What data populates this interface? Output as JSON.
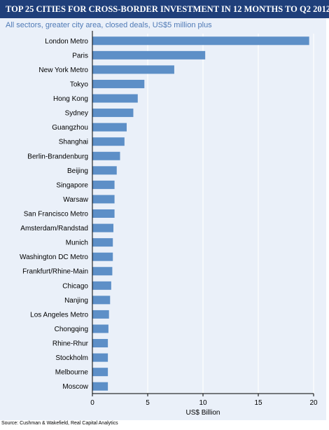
{
  "header": {
    "title": "TOP 25 CITIES FOR CROSS-BORDER INVESTMENT IN 12 MONTHS TO Q2 2012",
    "subtitle": "All sectors, greater city area, closed deals, US$5 million plus"
  },
  "footer": {
    "source": "Source: Cushman & Wakefield, Real Capital Analytics"
  },
  "colors": {
    "bar": "#5d8fc7",
    "title_bg": "#1f3f7a",
    "panel_bg": "#eaf0f9",
    "subtitle": "#4f7ab6"
  },
  "chart_data": {
    "type": "bar",
    "orientation": "horizontal",
    "title": "TOP 25 CITIES FOR CROSS-BORDER INVESTMENT IN 12 MONTHS TO Q2 2012",
    "subtitle": "All sectors, greater city area, closed deals, US$5 million plus",
    "xlabel": "US$ Billion",
    "ylabel": "",
    "xlim": [
      0,
      20
    ],
    "xticks": [
      0,
      5,
      10,
      15,
      20
    ],
    "grid": true,
    "categories": [
      "London Metro",
      "Paris",
      "New York Metro",
      "Tokyo",
      "Hong Kong",
      "Sydney",
      "Guangzhou",
      "Shanghai",
      "Berlin-Brandenburg",
      "Beijing",
      "Singapore",
      "Warsaw",
      "San Francisco Metro",
      "Amsterdam/Randstad",
      "Munich",
      "Washington DC Metro",
      "Frankfurt/Rhine-Main",
      "Chicago",
      "Nanjing",
      "Los Angeles Metro",
      "Chongqing",
      "Rhine-Rhur",
      "Stockholm",
      "Melbourne",
      "Moscow"
    ],
    "values": [
      19.6,
      10.2,
      7.4,
      4.7,
      4.1,
      3.7,
      3.1,
      2.9,
      2.5,
      2.2,
      2.0,
      2.0,
      2.0,
      1.9,
      1.85,
      1.85,
      1.8,
      1.7,
      1.6,
      1.5,
      1.45,
      1.4,
      1.4,
      1.4,
      1.4
    ]
  }
}
